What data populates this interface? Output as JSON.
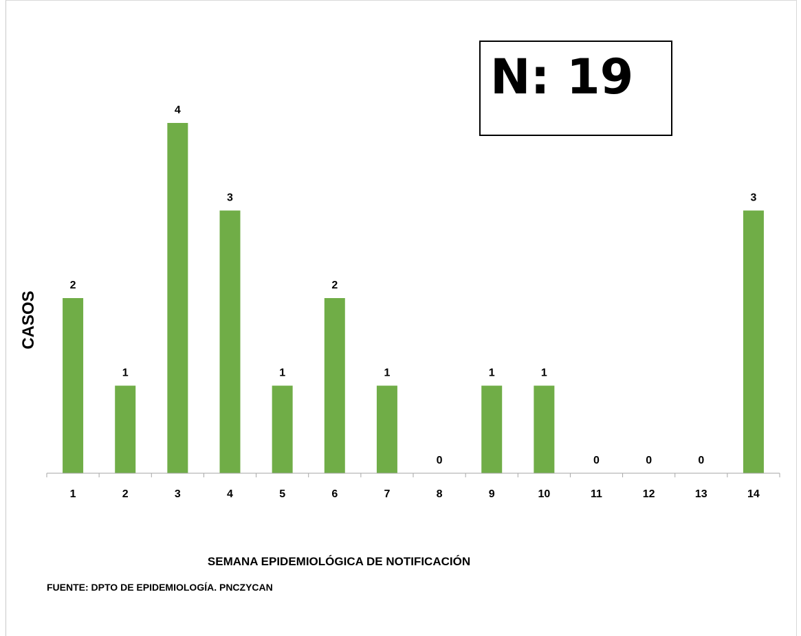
{
  "n_badge": {
    "text": "N: 19"
  },
  "chart_data": {
    "type": "bar",
    "title": "",
    "xlabel": "SEMANA EPIDEMIOLÓGICA  DE NOTIFICACIÓN",
    "ylabel": "CASOS",
    "categories": [
      "1",
      "2",
      "3",
      "4",
      "5",
      "6",
      "7",
      "8",
      "9",
      "10",
      "11",
      "12",
      "13",
      "14"
    ],
    "values": [
      2,
      1,
      4,
      3,
      1,
      2,
      1,
      0,
      1,
      1,
      0,
      0,
      0,
      3
    ],
    "ylim": [
      0,
      4
    ],
    "bar_color": "#70ad47",
    "grid": false,
    "legend": "none",
    "data_labels": true
  },
  "source_note": "FUENTE: DPTO DE EPIDEMIOLOGÍA. PNCZYCAN"
}
